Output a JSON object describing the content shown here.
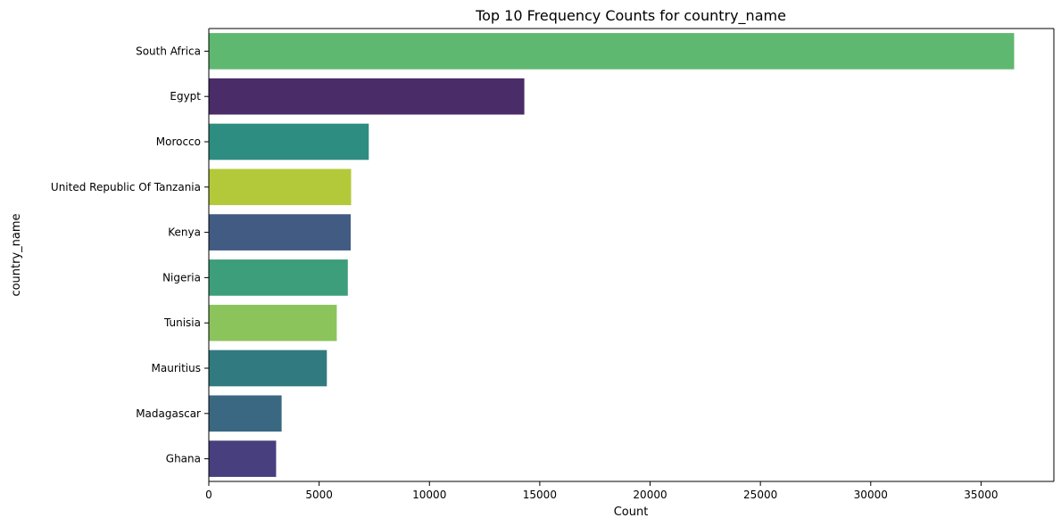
{
  "chart_data": {
    "type": "bar",
    "orientation": "horizontal",
    "title": "Top 10 Frequency Counts for country_name",
    "xlabel": "Count",
    "ylabel": "country_name",
    "xlim": [
      0,
      38300
    ],
    "xticks": [
      0,
      5000,
      10000,
      15000,
      20000,
      25000,
      30000,
      35000
    ],
    "grid": false,
    "categories": [
      "South Africa",
      "Egypt",
      "Morocco",
      "United Republic Of Tanzania",
      "Kenya",
      "Nigeria",
      "Tunisia",
      "Mauritius",
      "Madagascar",
      "Ghana"
    ],
    "values": [
      36500,
      14300,
      7250,
      6450,
      6430,
      6300,
      5800,
      5350,
      3300,
      3050
    ],
    "colors": [
      "#5fb870",
      "#4a2c69",
      "#2d8d80",
      "#b4c93a",
      "#415b82",
      "#3c9e7a",
      "#8bc45b",
      "#307a80",
      "#3a6882",
      "#473f7e"
    ]
  }
}
